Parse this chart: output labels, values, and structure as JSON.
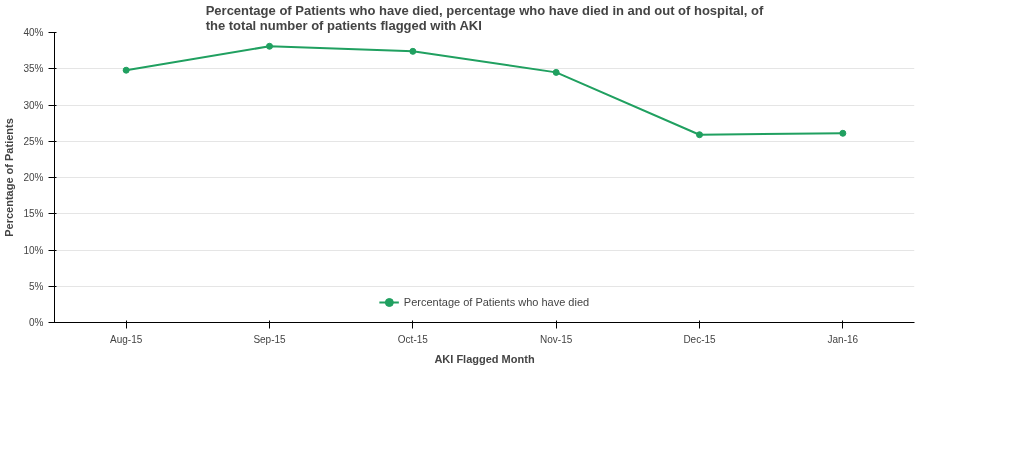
{
  "chart_data": {
    "type": "line",
    "title": "Percentage of Patients who have died, percentage who have died in and out of hospital, of the total number of patients flagged with AKI",
    "xlabel": "AKI Flagged Month",
    "ylabel": "Percentage of Patients",
    "categories": [
      "Aug-15",
      "Sep-15",
      "Oct-15",
      "Nov-15",
      "Dec-15",
      "Jan-16"
    ],
    "series": [
      {
        "name": "Percentage of Patients who have died",
        "color": "#20a060",
        "values": [
          34.8,
          38.1,
          37.4,
          34.5,
          25.9,
          26.1
        ]
      }
    ],
    "ylim": [
      0,
      40
    ],
    "yticks": [
      {
        "value": 0,
        "label": "0%"
      },
      {
        "value": 5,
        "label": "5%"
      },
      {
        "value": 10,
        "label": "10%"
      },
      {
        "value": 15,
        "label": "15%"
      },
      {
        "value": 20,
        "label": "20%"
      },
      {
        "value": 25,
        "label": "25%"
      },
      {
        "value": 30,
        "label": "30%"
      },
      {
        "value": 35,
        "label": "35%"
      },
      {
        "value": 40,
        "label": "40%"
      }
    ],
    "grid": "y",
    "legend": "bottom",
    "marker": "circle",
    "line_style": "solid"
  }
}
